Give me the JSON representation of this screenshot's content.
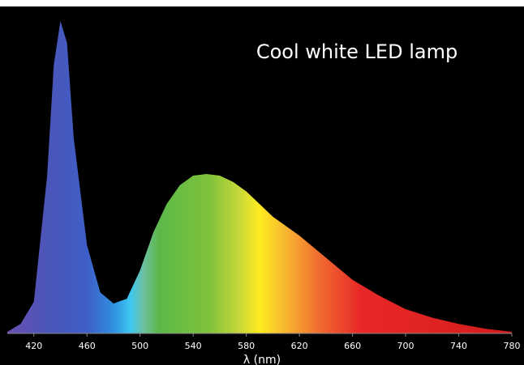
{
  "chart_data": {
    "type": "area",
    "title": "Cool white LED lamp",
    "xlabel": "λ (nm)",
    "x": [
      400,
      410,
      420,
      430,
      435,
      440,
      445,
      450,
      460,
      470,
      480,
      490,
      500,
      510,
      520,
      530,
      540,
      550,
      560,
      570,
      580,
      590,
      600,
      620,
      640,
      660,
      680,
      700,
      720,
      740,
      760,
      780
    ],
    "values": [
      0.005,
      0.03,
      0.1,
      0.5,
      0.85,
      0.99,
      0.92,
      0.62,
      0.28,
      0.13,
      0.095,
      0.11,
      0.2,
      0.32,
      0.41,
      0.47,
      0.5,
      0.505,
      0.5,
      0.48,
      0.45,
      0.41,
      0.37,
      0.31,
      0.24,
      0.17,
      0.12,
      0.077,
      0.05,
      0.03,
      0.015,
      0.005
    ],
    "xlim": [
      400,
      780
    ],
    "ylim": [
      0,
      1
    ],
    "xticks": [
      420,
      460,
      500,
      540,
      580,
      620,
      660,
      700,
      740,
      780
    ]
  }
}
